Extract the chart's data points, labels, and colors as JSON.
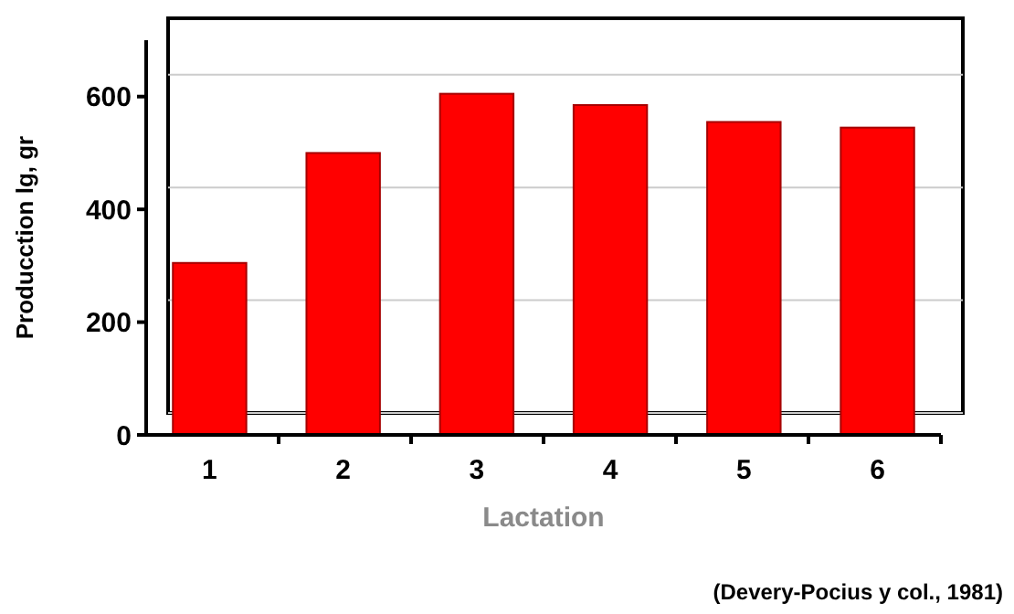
{
  "chart_data": {
    "type": "bar",
    "xlabel": "Lactation",
    "ylabel": "Producction lg, gr",
    "categories": [
      "1",
      "2",
      "3",
      "4",
      "5",
      "6"
    ],
    "values": [
      305,
      500,
      605,
      585,
      555,
      545
    ],
    "color": "#ff0000",
    "ylim": [
      0,
      700
    ],
    "yticks": [
      0,
      200,
      400,
      600
    ],
    "grid": "y",
    "annotations": [
      "(Devery-Pocius y col., 1981)"
    ]
  }
}
